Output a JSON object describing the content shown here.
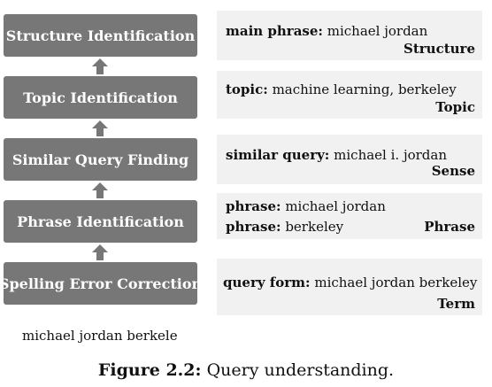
{
  "stages": [
    {
      "label": "Structure Identification"
    },
    {
      "label": "Topic Identification"
    },
    {
      "label": "Similar Query Finding"
    },
    {
      "label": "Phrase Identification"
    },
    {
      "label": "Spelling Error Correction"
    }
  ],
  "panels": [
    {
      "lines": [
        {
          "key": "main phrase:",
          "value": "michael  jordan"
        }
      ],
      "tag": "Structure"
    },
    {
      "lines": [
        {
          "key": "topic:",
          "value": "machine learning, berkeley"
        }
      ],
      "tag": "Topic"
    },
    {
      "lines": [
        {
          "key": "similar query:",
          "value": "michael i. jordan"
        }
      ],
      "tag": "Sense"
    },
    {
      "lines": [
        {
          "key": "phrase:",
          "value": "michael  jordan"
        },
        {
          "key": "phrase:",
          "value": "berkeley"
        }
      ],
      "tag": "Phrase"
    },
    {
      "lines": [
        {
          "key": "query form:",
          "value": "michael jordan berkeley"
        }
      ],
      "tag": "Term"
    }
  ],
  "input_query": "michael jordan berkele",
  "caption": {
    "label": "Figure 2.2:",
    "text": "Query understanding."
  },
  "colors": {
    "stage_fill": "#777777",
    "panel_fill": "#f1f1f1",
    "arrow_fill": "#777777"
  }
}
